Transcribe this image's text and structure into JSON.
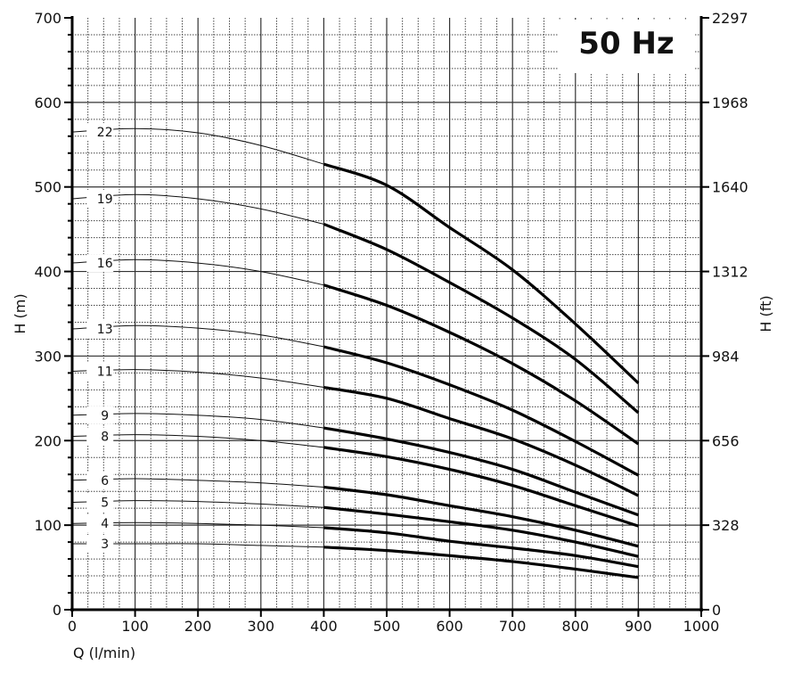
{
  "chart_data": {
    "type": "line",
    "title": "50 Hz",
    "xlabel": "Q (l/min)",
    "ylabel": "H (m)",
    "ylabel_right": "H (ft)",
    "xlim": [
      0,
      1000
    ],
    "ylim": [
      0,
      700
    ],
    "x_ticks": [
      0,
      100,
      200,
      300,
      400,
      500,
      600,
      700,
      800,
      900,
      1000
    ],
    "y_ticks": [
      0,
      100,
      200,
      300,
      400,
      500,
      600,
      700
    ],
    "y_right_ticks": [
      "0",
      "328",
      "656",
      "984",
      "1312",
      "1640",
      "1968",
      "2297"
    ],
    "grid": true,
    "x": [
      0,
      100,
      200,
      300,
      400,
      500,
      600,
      700,
      800,
      900
    ],
    "recommended_range": [
      400,
      900
    ],
    "series": [
      {
        "name": "22",
        "values": [
          565,
          569,
          564,
          549,
          527,
          502,
          452,
          402,
          338,
          268
        ]
      },
      {
        "name": "19",
        "values": [
          486,
          491,
          486,
          474,
          456,
          426,
          387,
          345,
          296,
          233
        ]
      },
      {
        "name": "16",
        "values": [
          410,
          414,
          410,
          400,
          384,
          360,
          328,
          291,
          247,
          196
        ]
      },
      {
        "name": "13",
        "values": [
          332,
          336,
          333,
          325,
          311,
          292,
          266,
          236,
          199,
          159
        ]
      },
      {
        "name": "11",
        "values": [
          282,
          284,
          281,
          274,
          263,
          250,
          226,
          202,
          171,
          135
        ]
      },
      {
        "name": "9",
        "values": [
          230,
          232,
          230,
          225,
          215,
          202,
          186,
          166,
          139,
          112
        ]
      },
      {
        "name": "8",
        "values": [
          205,
          207,
          205,
          200,
          192,
          181,
          166,
          147,
          123,
          99
        ]
      },
      {
        "name": "6",
        "values": [
          153,
          155,
          153,
          150,
          145,
          136,
          123,
          110,
          94,
          75
        ]
      },
      {
        "name": "5",
        "values": [
          127,
          129,
          128,
          125,
          121,
          113,
          104,
          94,
          80,
          63
        ]
      },
      {
        "name": "4",
        "values": [
          102,
          103,
          102,
          100,
          97,
          91,
          81,
          73,
          64,
          51
        ]
      },
      {
        "name": "3",
        "values": [
          78,
          78,
          78,
          76,
          74,
          70,
          64,
          57,
          48,
          38
        ]
      }
    ]
  }
}
